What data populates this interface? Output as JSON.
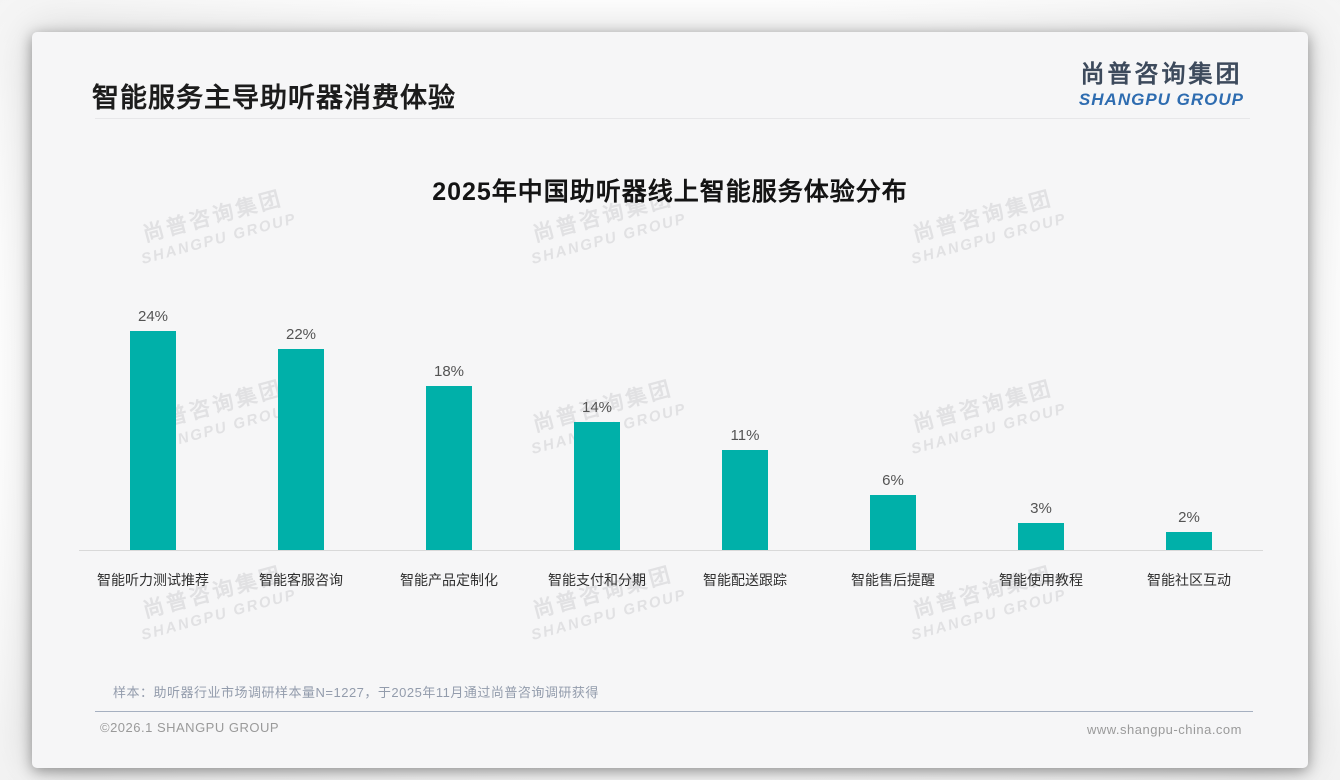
{
  "page": {
    "title": "智能服务主导助听器消费体验",
    "logo": {
      "cn": "尚普咨询集团",
      "en": "SHANGPU GROUP"
    },
    "watermark": {
      "cn": "尚普咨询集团",
      "en": "SHANGPU GROUP"
    },
    "note": "样本：助听器行业市场调研样本量N=1227，于2025年11月通过尚普咨询调研获得",
    "footer": {
      "left": "©2026.1 SHANGPU GROUP",
      "right": "www.shangpu-china.com"
    }
  },
  "colors": {
    "bar": "#00b0a9",
    "logo_blue": "#2e6cb0",
    "logo_dark": "#3d4a5c",
    "watermark": "#e1e1e3"
  },
  "chart_data": {
    "type": "bar",
    "title": "2025年中国助听器线上智能服务体验分布",
    "categories": [
      "智能听力测试推荐",
      "智能客服咨询",
      "智能产品定制化",
      "智能支付和分期",
      "智能配送跟踪",
      "智能售后提醒",
      "智能使用教程",
      "智能社区互动"
    ],
    "values": [
      24,
      22,
      18,
      14,
      11,
      6,
      3,
      2
    ],
    "labels": [
      "24%",
      "22%",
      "18%",
      "14%",
      "11%",
      "6%",
      "3%",
      "2%"
    ],
    "unit": "%",
    "ylim": [
      0,
      26
    ],
    "grid": false,
    "legend": false,
    "data_labels": true,
    "bar_color": "#00b0a9"
  }
}
